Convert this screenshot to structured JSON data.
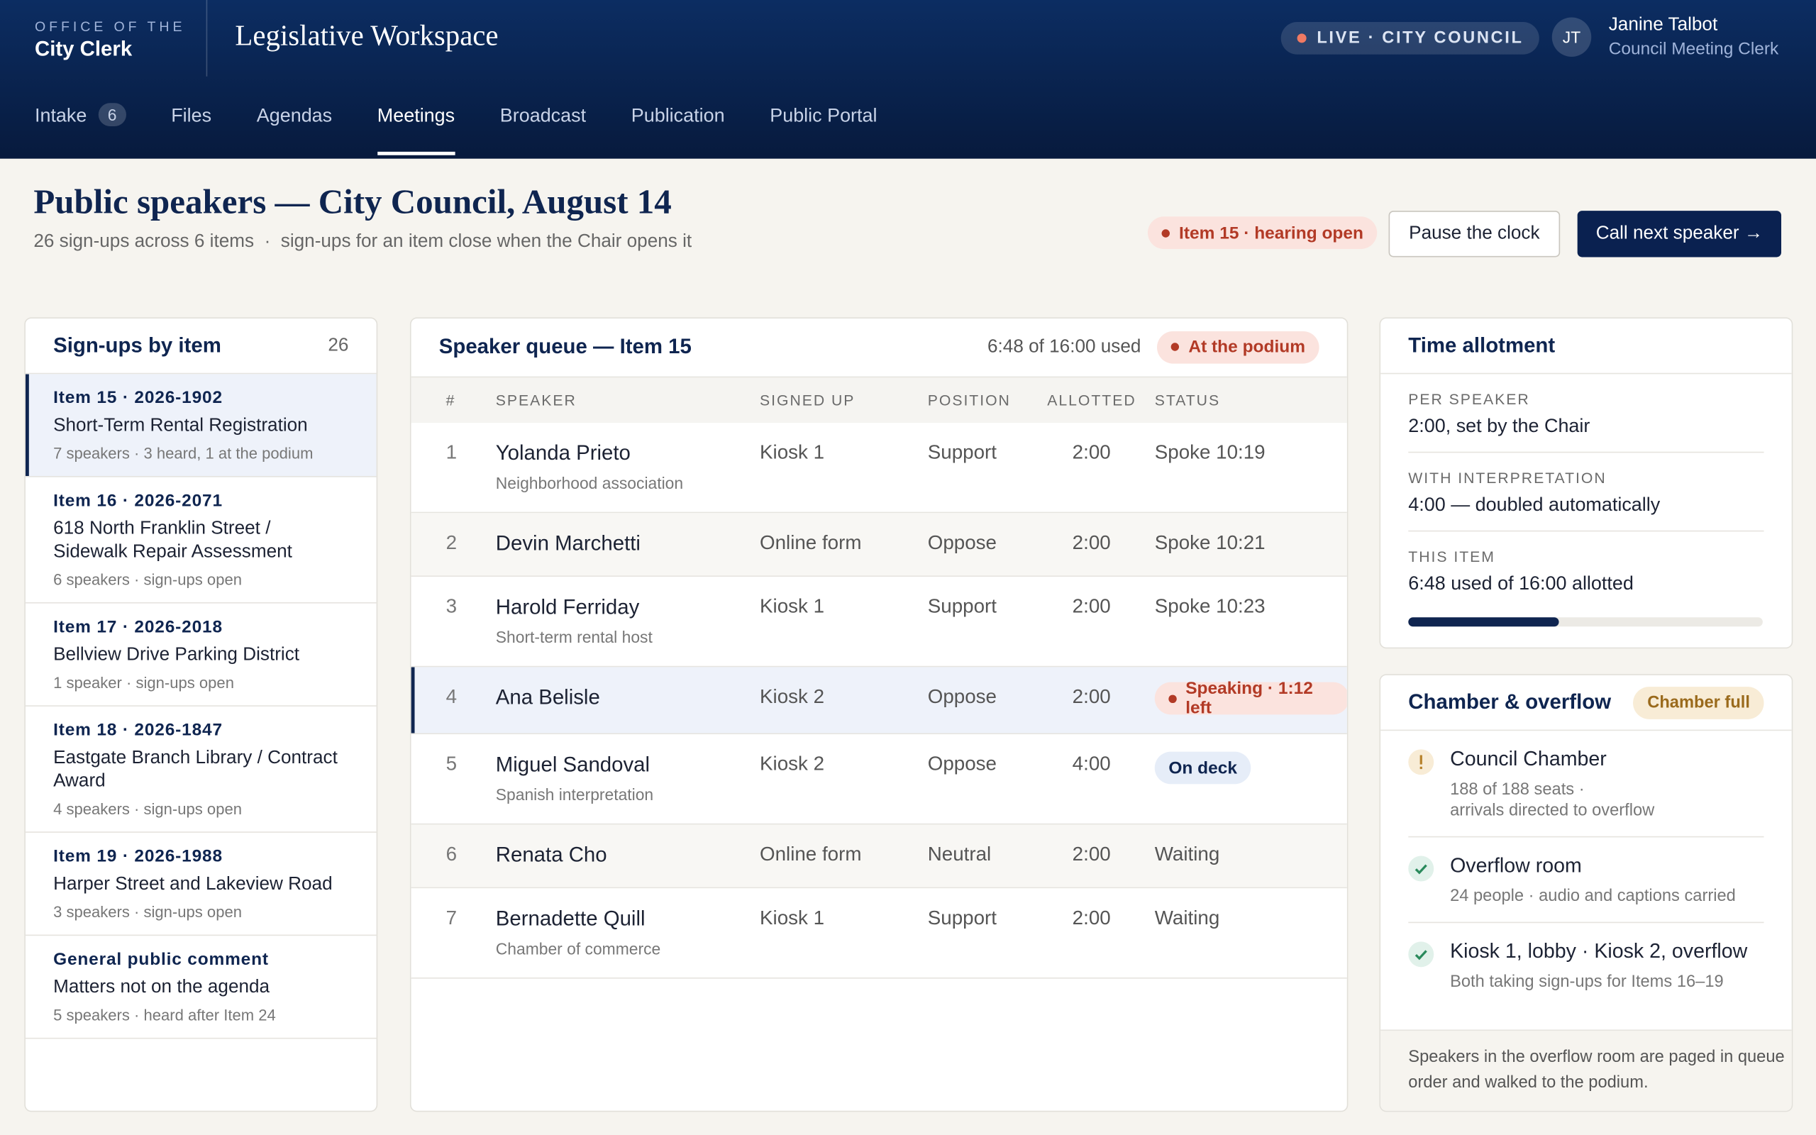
{
  "header": {
    "office_line1": "OFFICE OF THE",
    "office_line2": "City Clerk",
    "app_title": "Legislative Workspace",
    "live_badge": "LIVE · CITY COUNCIL",
    "user": {
      "initials": "JT",
      "name": "Janine Talbot",
      "role": "Council Meeting Clerk"
    }
  },
  "nav": [
    {
      "label": "Intake",
      "count": 6
    },
    {
      "label": "Files"
    },
    {
      "label": "Agendas"
    },
    {
      "label": "Meetings",
      "active": true
    },
    {
      "label": "Broadcast"
    },
    {
      "label": "Publication"
    },
    {
      "label": "Public Portal"
    }
  ],
  "page": {
    "title": "Public speakers — City Council, August 14",
    "subtitle": "26 sign-ups across 6 items  ·  sign-ups for an item close when the Chair opens it",
    "status_pill": "Item 15 · hearing open",
    "secondary_button": "Pause the clock",
    "primary_button": "Call next speaker →"
  },
  "signups": {
    "title": "Sign-ups by item",
    "count": 26,
    "items": [
      {
        "id": "Item 15 · 2026-1902",
        "title": "Short-Term Rental Registration",
        "meta": "7 speakers · 3 heard, 1 at the podium",
        "selected": true
      },
      {
        "id": "Item 16 · 2026-2071",
        "title": "618 North Franklin Street / Sidewalk Repair Assessment",
        "meta": "6 speakers · sign-ups open"
      },
      {
        "id": "Item 17 · 2026-2018",
        "title": "Bellview Drive Parking District",
        "meta": "1 speaker · sign-ups open"
      },
      {
        "id": "Item 18 · 2026-1847",
        "title": "Eastgate Branch Library / Contract Award",
        "meta": "4 speakers · sign-ups open"
      },
      {
        "id": "Item 19 · 2026-1988",
        "title": "Harper Street and Lakeview Road",
        "meta": "3 speakers · sign-ups open"
      },
      {
        "id": "General public comment",
        "title": "Matters not on the agenda",
        "meta": "5 speakers · heard after Item 24"
      }
    ]
  },
  "queue": {
    "title": "Speaker queue — Item 15",
    "used": "6:48 of 16:00 used",
    "badge": "At the podium",
    "columns": [
      "#",
      "SPEAKER",
      "SIGNED UP",
      "POSITION",
      "ALLOTTED",
      "STATUS"
    ],
    "rows": [
      {
        "num": 1,
        "name": "Yolanda Prieto",
        "note": "Neighborhood association",
        "signed_up": "Kiosk 1",
        "position": "Support",
        "allotted": "2:00",
        "status": "Spoke 10:19",
        "status_style": "plain"
      },
      {
        "num": 2,
        "name": "Devin Marchetti",
        "signed_up": "Online form",
        "position": "Oppose",
        "allotted": "2:00",
        "status": "Spoke 10:21",
        "status_style": "plain"
      },
      {
        "num": 3,
        "name": "Harold Ferriday",
        "note": "Short-term rental host",
        "signed_up": "Kiosk 1",
        "position": "Support",
        "allotted": "2:00",
        "status": "Spoke 10:23",
        "status_style": "plain"
      },
      {
        "num": 4,
        "name": "Ana Belisle",
        "signed_up": "Kiosk 2",
        "position": "Oppose",
        "allotted": "2:00",
        "status": "Speaking · 1:12 left",
        "status_style": "speaking",
        "current": true
      },
      {
        "num": 5,
        "name": "Miguel Sandoval",
        "note": "Spanish interpretation",
        "signed_up": "Kiosk 2",
        "position": "Oppose",
        "allotted": "4:00",
        "status": "On deck",
        "status_style": "deck"
      },
      {
        "num": 6,
        "name": "Renata Cho",
        "signed_up": "Online form",
        "position": "Neutral",
        "allotted": "2:00",
        "status": "Waiting",
        "status_style": "plain"
      },
      {
        "num": 7,
        "name": "Bernadette Quill",
        "note": "Chamber of commerce",
        "signed_up": "Kiosk 1",
        "position": "Support",
        "allotted": "2:00",
        "status": "Waiting",
        "status_style": "plain"
      }
    ]
  },
  "time": {
    "title": "Time allotment",
    "items": [
      {
        "label": "PER SPEAKER",
        "value": "2:00, set by the Chair"
      },
      {
        "label": "WITH INTERPRETATION",
        "value": "4:00 — doubled automatically"
      },
      {
        "label": "THIS ITEM",
        "value": "6:48 used of 16:00 allotted"
      }
    ],
    "progress_percent": 42.5
  },
  "chamber": {
    "title": "Chamber & overflow",
    "badge": "Chamber full",
    "items": [
      {
        "title": "Council Chamber",
        "lines": [
          "188 of 188 seats ·",
          "arrivals directed to overflow"
        ],
        "state": "warn"
      },
      {
        "title": "Overflow room",
        "lines": [
          "24 people · audio and captions carried"
        ],
        "state": "ok"
      },
      {
        "title": "Kiosk 1, lobby · Kiosk 2, overflow",
        "lines": [
          "Both taking sign-ups for Items 16–19"
        ],
        "state": "ok"
      }
    ],
    "note": "Speakers in the overflow room are paged in queue order and walked to the podium."
  }
}
